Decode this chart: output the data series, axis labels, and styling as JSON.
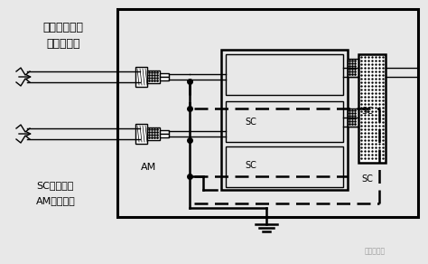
{
  "bg_color": "#e8e8e8",
  "title_text1": "穿金属管或铠",
  "title_text2": "装屏蔽电缆",
  "label_sc": "SC：屏蔽层",
  "label_am": "AM：铠装层",
  "watermark": "新浪云平台"
}
